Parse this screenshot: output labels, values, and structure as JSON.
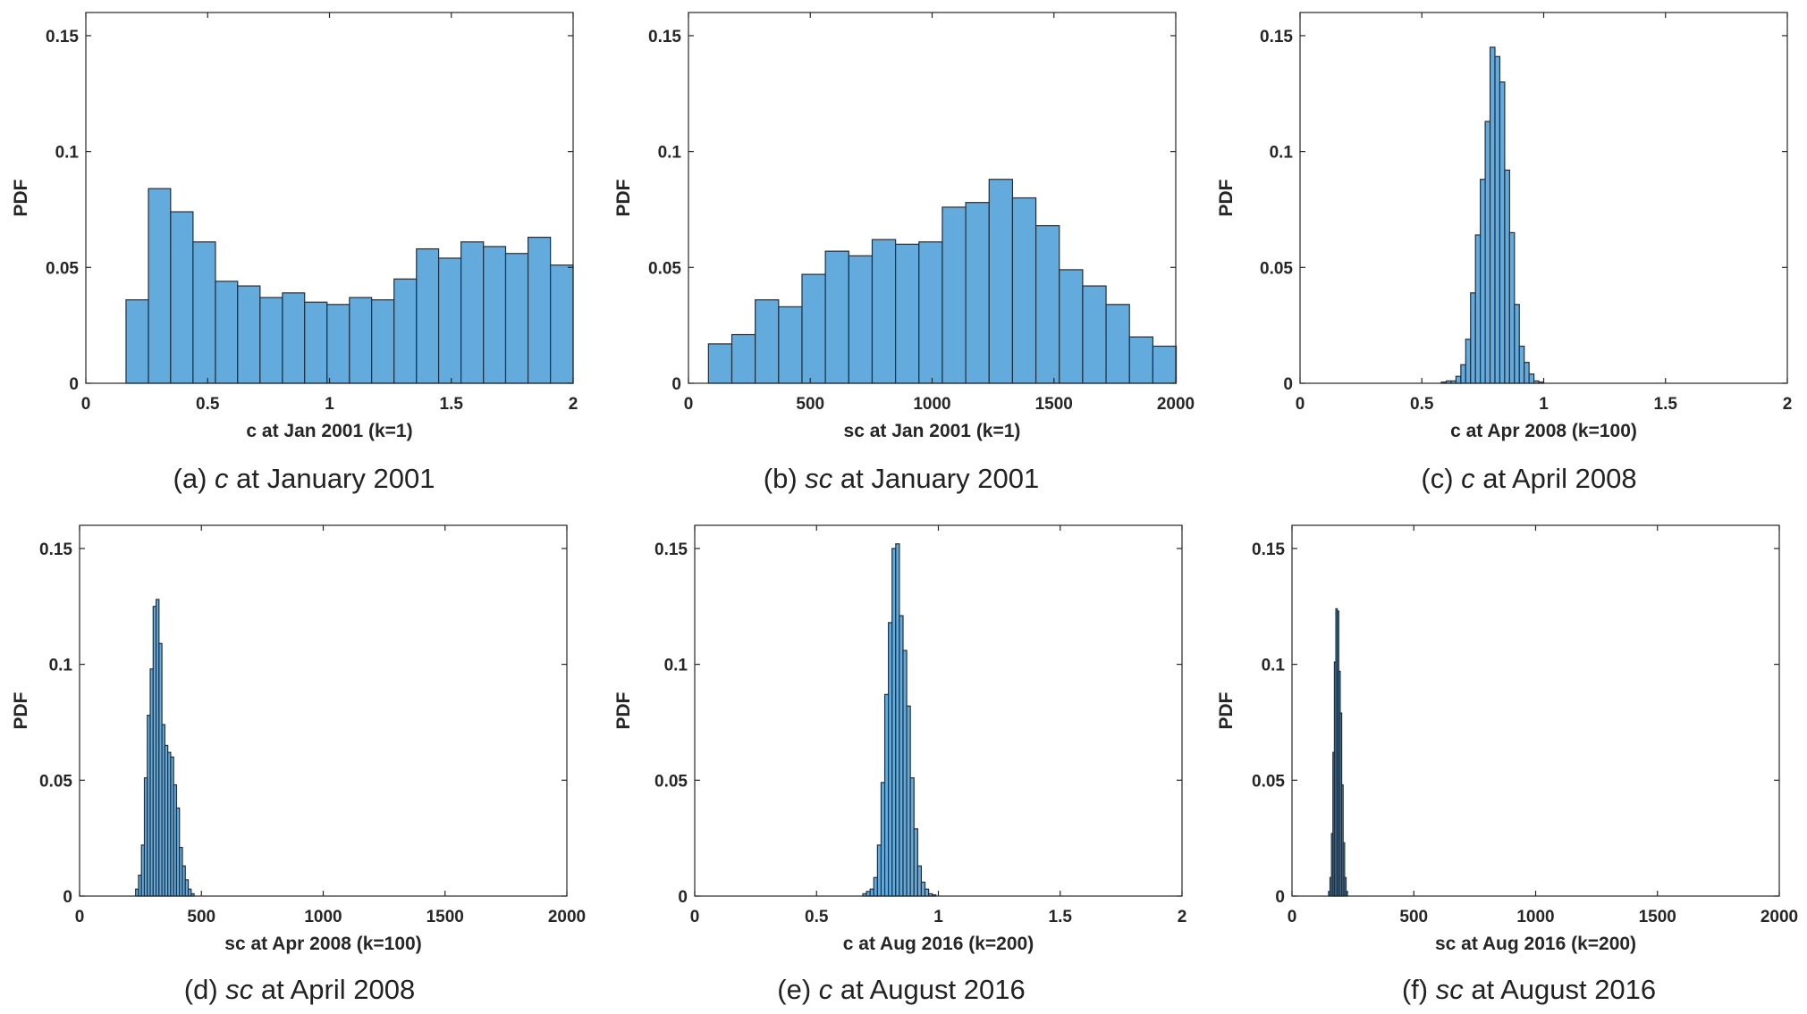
{
  "colors": {
    "bar_fill": "#63abdc",
    "bar_edge": "#1f2f3f",
    "axis": "#262626"
  },
  "chart_data": [
    {
      "type": "bar",
      "caption": {
        "prefix": "(a) ",
        "var": "c",
        "suffix": " at January 2001"
      },
      "xlabel": "c at Jan 2001 (k=1)",
      "ylabel": "PDF",
      "xlim": [
        0,
        2
      ],
      "ylim": [
        0,
        0.16
      ],
      "xticks": [
        0,
        0.5,
        1,
        1.5,
        2
      ],
      "xtick_labels": [
        "0",
        "0.5",
        "1",
        "1.5",
        "2"
      ],
      "yticks": [
        0,
        0.05,
        0.1,
        0.15
      ],
      "ytick_labels": [
        "0",
        "0.05",
        "0.1",
        "0.15"
      ],
      "bin_edges": [
        0.165,
        0.257,
        0.348,
        0.44,
        0.532,
        0.623,
        0.715,
        0.807,
        0.898,
        0.99,
        1.082,
        1.173,
        1.265,
        1.357,
        1.448,
        1.54,
        1.632,
        1.723,
        1.815,
        1.907,
        2.0
      ],
      "values": [
        0.036,
        0.084,
        0.074,
        0.061,
        0.044,
        0.042,
        0.037,
        0.039,
        0.035,
        0.034,
        0.037,
        0.036,
        0.045,
        0.058,
        0.054,
        0.061,
        0.059,
        0.056,
        0.063,
        0.051
      ]
    },
    {
      "type": "bar",
      "caption": {
        "prefix": "(b) ",
        "var": "sc",
        "suffix": " at January 2001"
      },
      "xlabel": "sc at Jan 2001 (k=1)",
      "ylabel": "PDF",
      "xlim": [
        0,
        2000
      ],
      "ylim": [
        0,
        0.16
      ],
      "xticks": [
        0,
        500,
        1000,
        1500,
        2000
      ],
      "xtick_labels": [
        "0",
        "500",
        "1000",
        "1500",
        "2000"
      ],
      "yticks": [
        0,
        0.05,
        0.1,
        0.15
      ],
      "ytick_labels": [
        "0",
        "0.05",
        "0.1",
        "0.15"
      ],
      "bin_edges": [
        82,
        178,
        274,
        370,
        466,
        562,
        658,
        754,
        850,
        946,
        1042,
        1138,
        1234,
        1330,
        1426,
        1522,
        1618,
        1714,
        1810,
        1906,
        2002
      ],
      "values": [
        0.017,
        0.021,
        0.036,
        0.033,
        0.047,
        0.057,
        0.055,
        0.062,
        0.06,
        0.061,
        0.076,
        0.078,
        0.088,
        0.08,
        0.068,
        0.049,
        0.042,
        0.034,
        0.02,
        0.016
      ]
    },
    {
      "type": "bar",
      "caption": {
        "prefix": "(c) ",
        "var": "c",
        "suffix": " at April 2008"
      },
      "xlabel": "c at Apr 2008 (k=100)",
      "ylabel": "PDF",
      "xlim": [
        0,
        2
      ],
      "ylim": [
        0,
        0.16
      ],
      "xticks": [
        0,
        0.5,
        1,
        1.5,
        2
      ],
      "xtick_labels": [
        "0",
        "0.5",
        "1",
        "1.5",
        "2"
      ],
      "yticks": [
        0,
        0.05,
        0.1,
        0.15
      ],
      "ytick_labels": [
        "0",
        "0.05",
        "0.1",
        "0.15"
      ],
      "bin_edges": [
        0.58,
        0.6,
        0.62,
        0.64,
        0.66,
        0.68,
        0.7,
        0.72,
        0.74,
        0.76,
        0.78,
        0.8,
        0.82,
        0.84,
        0.86,
        0.88,
        0.9,
        0.92,
        0.94,
        0.96,
        0.98,
        1.0
      ],
      "values": [
        0.0005,
        0.001,
        0.001,
        0.003,
        0.008,
        0.019,
        0.039,
        0.064,
        0.088,
        0.113,
        0.145,
        0.141,
        0.13,
        0.092,
        0.065,
        0.034,
        0.016,
        0.009,
        0.004,
        0.001,
        0.0005
      ]
    },
    {
      "type": "bar",
      "caption": {
        "prefix": "(d) ",
        "var": "sc",
        "suffix": " at April 2008"
      },
      "xlabel": "sc at Apr 2008 (k=100)",
      "ylabel": "PDF",
      "xlim": [
        0,
        2000
      ],
      "ylim": [
        0,
        0.16
      ],
      "xticks": [
        0,
        500,
        1000,
        1500,
        2000
      ],
      "xtick_labels": [
        "0",
        "500",
        "1000",
        "1500",
        "2000"
      ],
      "yticks": [
        0,
        0.05,
        0.1,
        0.15
      ],
      "ytick_labels": [
        "0",
        "0.05",
        "0.1",
        "0.15"
      ],
      "bin_edges": [
        230,
        242,
        254,
        266,
        278,
        290,
        302,
        314,
        326,
        338,
        350,
        362,
        374,
        386,
        398,
        410,
        422,
        434,
        446,
        458,
        470
      ],
      "values": [
        0.003,
        0.009,
        0.022,
        0.051,
        0.078,
        0.098,
        0.125,
        0.128,
        0.109,
        0.074,
        0.065,
        0.062,
        0.06,
        0.048,
        0.038,
        0.021,
        0.013,
        0.007,
        0.003,
        0.001
      ]
    },
    {
      "type": "bar",
      "caption": {
        "prefix": "(e) ",
        "var": "c",
        "suffix": " at August 2016"
      },
      "xlabel": "c at Aug 2016 (k=200)",
      "ylabel": "PDF",
      "xlim": [
        0,
        2
      ],
      "ylim": [
        0,
        0.16
      ],
      "xticks": [
        0,
        0.5,
        1,
        1.5,
        2
      ],
      "xtick_labels": [
        "0",
        "0.5",
        "1",
        "1.5",
        "2"
      ],
      "yticks": [
        0,
        0.05,
        0.1,
        0.15
      ],
      "ytick_labels": [
        "0",
        "0.05",
        "0.1",
        "0.15"
      ],
      "bin_edges": [
        0.69,
        0.705,
        0.72,
        0.735,
        0.75,
        0.765,
        0.78,
        0.795,
        0.81,
        0.825,
        0.84,
        0.855,
        0.87,
        0.885,
        0.9,
        0.915,
        0.93,
        0.945,
        0.96,
        0.975,
        0.99
      ],
      "values": [
        0.001,
        0.002,
        0.003,
        0.008,
        0.022,
        0.049,
        0.087,
        0.118,
        0.15,
        0.152,
        0.121,
        0.106,
        0.082,
        0.051,
        0.029,
        0.013,
        0.006,
        0.003,
        0.001,
        0.0005
      ]
    },
    {
      "type": "bar",
      "caption": {
        "prefix": "(f) ",
        "var": "sc",
        "suffix": " at August 2016"
      },
      "xlabel": "sc at Aug 2016 (k=200)",
      "ylabel": "PDF",
      "xlim": [
        0,
        2000
      ],
      "ylim": [
        0,
        0.16
      ],
      "xticks": [
        0,
        500,
        1000,
        1500,
        2000
      ],
      "xtick_labels": [
        "0",
        "500",
        "1000",
        "1500",
        "2000"
      ],
      "yticks": [
        0,
        0.05,
        0.1,
        0.15
      ],
      "ytick_labels": [
        "0",
        "0.05",
        "0.1",
        "0.15"
      ],
      "bin_edges": [
        150,
        156,
        162,
        168,
        174,
        180,
        186,
        192,
        198,
        204,
        210,
        216,
        222,
        228
      ],
      "values": [
        0.002,
        0.008,
        0.027,
        0.062,
        0.101,
        0.124,
        0.123,
        0.097,
        0.079,
        0.048,
        0.023,
        0.008,
        0.002
      ]
    }
  ]
}
